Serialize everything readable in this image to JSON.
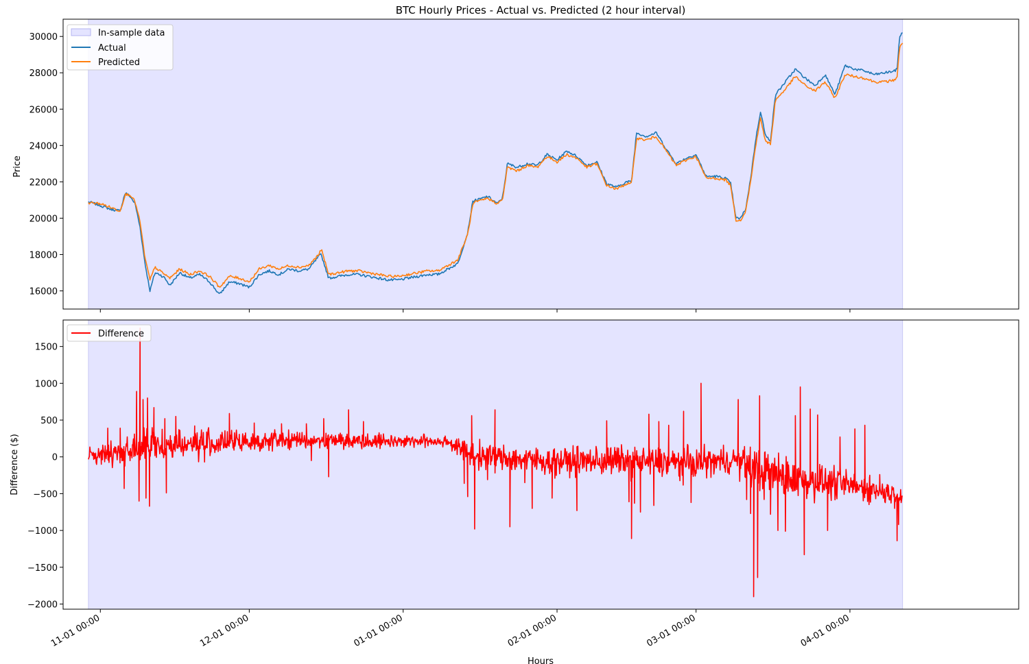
{
  "figure": {
    "xlabel": "Hours",
    "x_ticks": [
      "11-01 00:00",
      "12-01 00:00",
      "01-01 00:00",
      "02-01 00:00",
      "03-01 00:00",
      "04-01 00:00"
    ],
    "x_tick_positions_days": [
      0,
      30,
      61,
      92,
      120,
      151
    ],
    "x_range_days": [
      -7.5,
      185
    ],
    "in_sample_range_days": [
      -2.4,
      161.6
    ]
  },
  "chart_data": [
    {
      "type": "line",
      "title": "BTC Hourly Prices - Actual vs. Predicted (2 hour interval)",
      "xlabel": "",
      "ylabel": "Price",
      "ylim": [
        15000,
        30950
      ],
      "y_ticks": [
        16000,
        18000,
        20000,
        22000,
        24000,
        26000,
        28000,
        30000
      ],
      "legend": {
        "placement": "upper-left",
        "entries": [
          "In-sample data",
          "Actual",
          "Predicted"
        ]
      },
      "shaded_region": {
        "label": "In-sample data",
        "color": "#e4e4ff",
        "x_days": [
          -2.4,
          161.6
        ]
      },
      "series": [
        {
          "name": "Actual",
          "color": "#1f77b4",
          "x_days": [
            -2.4,
            0,
            2,
            4,
            5,
            6,
            7,
            8,
            9,
            10,
            11,
            12,
            13,
            14,
            16,
            18,
            20,
            22,
            24,
            26,
            28,
            30,
            32,
            34,
            36,
            38,
            40,
            42,
            44,
            44.5,
            46,
            48,
            50,
            52,
            54,
            56,
            58,
            60,
            62,
            64,
            66,
            68,
            70,
            72,
            74,
            75,
            75.5,
            76,
            78,
            80,
            81,
            82,
            84,
            86,
            88,
            90,
            92,
            94,
            96,
            98,
            100,
            101,
            102,
            104,
            106,
            107,
            108,
            110,
            112,
            114,
            116,
            118,
            120,
            122,
            124,
            126,
            127,
            128,
            129,
            130,
            131,
            132,
            133,
            134,
            135,
            136,
            138,
            140,
            142,
            144,
            146,
            148,
            150,
            152,
            154,
            156,
            158,
            160,
            160.5,
            161,
            161.6
          ],
          "values": [
            20900,
            20700,
            20500,
            20400,
            21400,
            21200,
            20800,
            19500,
            17500,
            16000,
            17000,
            16900,
            16700,
            16300,
            17000,
            16700,
            16900,
            16500,
            15800,
            16500,
            16400,
            16200,
            16900,
            17100,
            16900,
            17200,
            17100,
            17200,
            17900,
            18000,
            16700,
            16800,
            16900,
            16900,
            16800,
            16700,
            16600,
            16600,
            16700,
            16800,
            16900,
            16900,
            17200,
            17500,
            19200,
            20900,
            21000,
            21000,
            21200,
            20800,
            21100,
            23000,
            22800,
            23000,
            22900,
            23500,
            23200,
            23700,
            23400,
            22900,
            23100,
            22500,
            21900,
            21700,
            22000,
            22000,
            24700,
            24500,
            24700,
            23800,
            23000,
            23300,
            23500,
            22300,
            22300,
            22200,
            21900,
            20000,
            20000,
            20500,
            22200,
            24300,
            25900,
            24500,
            24300,
            26800,
            27500,
            28200,
            27700,
            27300,
            27900,
            26800,
            28400,
            28200,
            28100,
            27900,
            28000,
            28100,
            28200,
            30000,
            30200
          ]
        },
        {
          "name": "Predicted",
          "color": "#ff7f0e",
          "x_days": [
            -2.4,
            0,
            2,
            4,
            5,
            6,
            7,
            8,
            9,
            10,
            11,
            12,
            13,
            14,
            16,
            18,
            20,
            22,
            24,
            26,
            28,
            30,
            32,
            34,
            36,
            38,
            40,
            42,
            44,
            44.5,
            46,
            48,
            50,
            52,
            54,
            56,
            58,
            60,
            62,
            64,
            66,
            68,
            70,
            72,
            74,
            75,
            75.5,
            76,
            78,
            80,
            81,
            82,
            84,
            86,
            88,
            90,
            92,
            94,
            96,
            98,
            100,
            101,
            102,
            104,
            106,
            107,
            108,
            110,
            112,
            114,
            116,
            118,
            120,
            122,
            124,
            126,
            127,
            128,
            129,
            130,
            131,
            132,
            133,
            134,
            135,
            136,
            138,
            140,
            142,
            144,
            146,
            148,
            150,
            152,
            154,
            156,
            158,
            160,
            160.5,
            161,
            161.6
          ],
          "values": [
            20850,
            20800,
            20600,
            20400,
            21300,
            21300,
            20900,
            19800,
            17800,
            16600,
            17300,
            17100,
            16900,
            16700,
            17200,
            16900,
            17100,
            16800,
            16200,
            16800,
            16700,
            16500,
            17200,
            17400,
            17200,
            17400,
            17300,
            17400,
            18000,
            18300,
            16900,
            17000,
            17100,
            17100,
            17000,
            16900,
            16800,
            16800,
            16900,
            17000,
            17100,
            17100,
            17400,
            17700,
            19100,
            20700,
            20900,
            20900,
            21100,
            20800,
            21000,
            22800,
            22600,
            22900,
            22800,
            23400,
            23100,
            23500,
            23300,
            22800,
            23000,
            22400,
            21800,
            21600,
            21900,
            21900,
            24400,
            24300,
            24500,
            23700,
            22900,
            23200,
            23400,
            22200,
            22200,
            22100,
            21800,
            19900,
            19900,
            20400,
            22000,
            24000,
            25500,
            24200,
            24100,
            26500,
            27100,
            27800,
            27300,
            27000,
            27500,
            26600,
            27900,
            27800,
            27700,
            27500,
            27500,
            27600,
            27800,
            29400,
            29600
          ]
        }
      ]
    },
    {
      "type": "line",
      "title": "",
      "xlabel": "Hours",
      "ylabel": "Difference ($)",
      "ylim": [
        -2070,
        1860
      ],
      "y_ticks": [
        -2000,
        -1500,
        -1000,
        -500,
        0,
        500,
        1000,
        1500
      ],
      "legend": {
        "placement": "upper-left",
        "entries": [
          "Difference"
        ]
      },
      "shaded_region": {
        "label": "",
        "color": "#e4e4ff",
        "x_days": [
          -2.4,
          161.6
        ]
      },
      "series": [
        {
          "name": "Difference",
          "color": "#ff0000",
          "x_days": [
            -2.4,
            10,
            38,
            70,
            75,
            90,
            105,
            118,
            128,
            133,
            140,
            150,
            161.6
          ],
          "values": [
            0,
            150,
            230,
            210,
            20,
            -60,
            -50,
            -90,
            -40,
            -200,
            -300,
            -380,
            -520
          ],
          "noise_amplitude": [
            70,
            140,
            70,
            50,
            110,
            110,
            120,
            130,
            110,
            200,
            160,
            120,
            80
          ],
          "spikes": [
            {
              "x_day": 0.2,
              "value": -100
            },
            {
              "x_day": 1.5,
              "value": 390
            },
            {
              "x_day": 4.0,
              "value": 390
            },
            {
              "x_day": 4.8,
              "value": -430
            },
            {
              "x_day": 7.3,
              "value": 890
            },
            {
              "x_day": 7.8,
              "value": -600
            },
            {
              "x_day": 8.0,
              "value": 1750
            },
            {
              "x_day": 8.6,
              "value": 780
            },
            {
              "x_day": 9.2,
              "value": -560
            },
            {
              "x_day": 9.5,
              "value": 800
            },
            {
              "x_day": 9.9,
              "value": -670
            },
            {
              "x_day": 10.8,
              "value": 670
            },
            {
              "x_day": 13.0,
              "value": 520
            },
            {
              "x_day": 13.3,
              "value": -490
            },
            {
              "x_day": 15.2,
              "value": 550
            },
            {
              "x_day": 19.0,
              "value": 420
            },
            {
              "x_day": 21.0,
              "value": -70
            },
            {
              "x_day": 26.0,
              "value": 590
            },
            {
              "x_day": 31.0,
              "value": 460
            },
            {
              "x_day": 36.5,
              "value": 450
            },
            {
              "x_day": 41.5,
              "value": 450
            },
            {
              "x_day": 42.5,
              "value": -50
            },
            {
              "x_day": 45.0,
              "value": 520
            },
            {
              "x_day": 46.0,
              "value": -270
            },
            {
              "x_day": 50.0,
              "value": 640
            },
            {
              "x_day": 53.0,
              "value": 480
            },
            {
              "x_day": 73.3,
              "value": -360
            },
            {
              "x_day": 74.0,
              "value": -540
            },
            {
              "x_day": 74.8,
              "value": 560
            },
            {
              "x_day": 75.4,
              "value": -980
            },
            {
              "x_day": 78.0,
              "value": -310
            },
            {
              "x_day": 79.5,
              "value": 640
            },
            {
              "x_day": 82.5,
              "value": -950
            },
            {
              "x_day": 85.5,
              "value": -350
            },
            {
              "x_day": 87.0,
              "value": -700
            },
            {
              "x_day": 91.0,
              "value": -560
            },
            {
              "x_day": 96.0,
              "value": -730
            },
            {
              "x_day": 101.0,
              "value": -230
            },
            {
              "x_day": 102.0,
              "value": 490
            },
            {
              "x_day": 106.5,
              "value": -610
            },
            {
              "x_day": 107.0,
              "value": -1110
            },
            {
              "x_day": 107.6,
              "value": -630
            },
            {
              "x_day": 108.8,
              "value": -750
            },
            {
              "x_day": 110.5,
              "value": 580
            },
            {
              "x_day": 111.5,
              "value": -660
            },
            {
              "x_day": 112.5,
              "value": 480
            },
            {
              "x_day": 114.5,
              "value": 430
            },
            {
              "x_day": 117.5,
              "value": 620
            },
            {
              "x_day": 119.0,
              "value": -620
            },
            {
              "x_day": 121.0,
              "value": 1000
            },
            {
              "x_day": 122.0,
              "value": -140
            },
            {
              "x_day": 128.5,
              "value": 780
            },
            {
              "x_day": 130.2,
              "value": -580
            },
            {
              "x_day": 131.0,
              "value": -770
            },
            {
              "x_day": 131.6,
              "value": -1900
            },
            {
              "x_day": 132.4,
              "value": -1640
            },
            {
              "x_day": 132.8,
              "value": 830
            },
            {
              "x_day": 135.0,
              "value": -780
            },
            {
              "x_day": 136.5,
              "value": -1000
            },
            {
              "x_day": 138.0,
              "value": -1010
            },
            {
              "x_day": 140.0,
              "value": 560
            },
            {
              "x_day": 141.0,
              "value": 950
            },
            {
              "x_day": 141.8,
              "value": -1330
            },
            {
              "x_day": 143.0,
              "value": 650
            },
            {
              "x_day": 144.5,
              "value": 570
            },
            {
              "x_day": 146.5,
              "value": -1000
            },
            {
              "x_day": 147.5,
              "value": -320
            },
            {
              "x_day": 149.0,
              "value": 270
            },
            {
              "x_day": 152.0,
              "value": 380
            },
            {
              "x_day": 154.0,
              "value": 430
            },
            {
              "x_day": 155.0,
              "value": -250
            },
            {
              "x_day": 157.0,
              "value": -240
            },
            {
              "x_day": 160.0,
              "value": -700
            },
            {
              "x_day": 160.5,
              "value": -1140
            },
            {
              "x_day": 160.8,
              "value": -920
            }
          ]
        }
      ]
    }
  ]
}
